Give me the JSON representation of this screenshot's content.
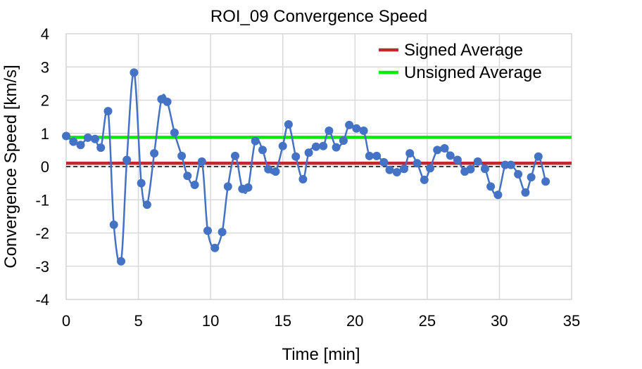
{
  "chart_data": {
    "type": "line",
    "title": "ROI_09 Convergence Speed",
    "xlabel": "Time [min]",
    "ylabel": "Convergence Speed [km/s]",
    "xlim": [
      0,
      35
    ],
    "ylim": [
      -4,
      4
    ],
    "xticks": [
      0,
      5,
      10,
      15,
      20,
      25,
      30,
      35
    ],
    "yticks": [
      -4,
      -3,
      -2,
      -1,
      0,
      1,
      2,
      3,
      4
    ],
    "grid": true,
    "legend_position": "top-right",
    "zero_line": {
      "y": 0,
      "style": "dashed",
      "color": "#000000"
    },
    "colors": {
      "series": "#4472c4",
      "signed_average": "#c0282d",
      "unsigned_average": "#00ee00",
      "grid": "#d9d9d9"
    },
    "series": [
      {
        "name": "ROI_09 Convergence Speed",
        "x": [
          0.0,
          0.5,
          1.0,
          1.5,
          2.0,
          2.4,
          2.9,
          3.3,
          3.8,
          4.2,
          4.7,
          5.2,
          5.6,
          6.1,
          6.6,
          7.0,
          7.5,
          8.0,
          8.4,
          8.9,
          9.4,
          9.8,
          10.3,
          10.8,
          11.2,
          11.7,
          12.2,
          12.6,
          13.1,
          13.6,
          14.0,
          14.5,
          15.0,
          15.4,
          15.9,
          16.4,
          16.8,
          17.3,
          17.8,
          18.2,
          18.7,
          19.2,
          19.6,
          20.1,
          20.6,
          21.0,
          21.5,
          22.0,
          22.4,
          22.9,
          23.4,
          23.8,
          24.3,
          24.8,
          25.2,
          25.7,
          26.2,
          26.6,
          27.1,
          27.6,
          28.0,
          28.5,
          29.0,
          29.4,
          29.9,
          30.4,
          30.8,
          31.3,
          31.8,
          32.2,
          32.7,
          33.2
        ],
        "y": [
          0.92,
          0.75,
          0.65,
          0.87,
          0.83,
          0.57,
          1.67,
          -1.75,
          -2.85,
          0.2,
          2.83,
          -0.5,
          -1.15,
          0.4,
          2.03,
          1.95,
          1.02,
          0.32,
          -0.28,
          -0.55,
          0.15,
          -1.93,
          -2.45,
          -1.97,
          -0.6,
          0.32,
          -0.67,
          -0.63,
          0.77,
          0.5,
          -0.08,
          -0.15,
          0.62,
          1.27,
          0.3,
          -0.38,
          0.42,
          0.6,
          0.62,
          1.08,
          0.58,
          0.78,
          1.25,
          1.15,
          1.08,
          0.32,
          0.32,
          0.13,
          -0.1,
          -0.17,
          -0.07,
          0.4,
          0.1,
          -0.4,
          -0.05,
          0.5,
          0.55,
          0.33,
          0.2,
          -0.15,
          -0.08,
          0.15,
          -0.07,
          -0.6,
          -0.85,
          0.05,
          0.05,
          -0.23,
          -0.78,
          -0.32,
          0.3,
          -0.45
        ]
      },
      {
        "name": "Signed Average",
        "type": "hline",
        "y": 0.1
      },
      {
        "name": "Unsigned Average",
        "type": "hline",
        "y": 0.88
      }
    ]
  }
}
